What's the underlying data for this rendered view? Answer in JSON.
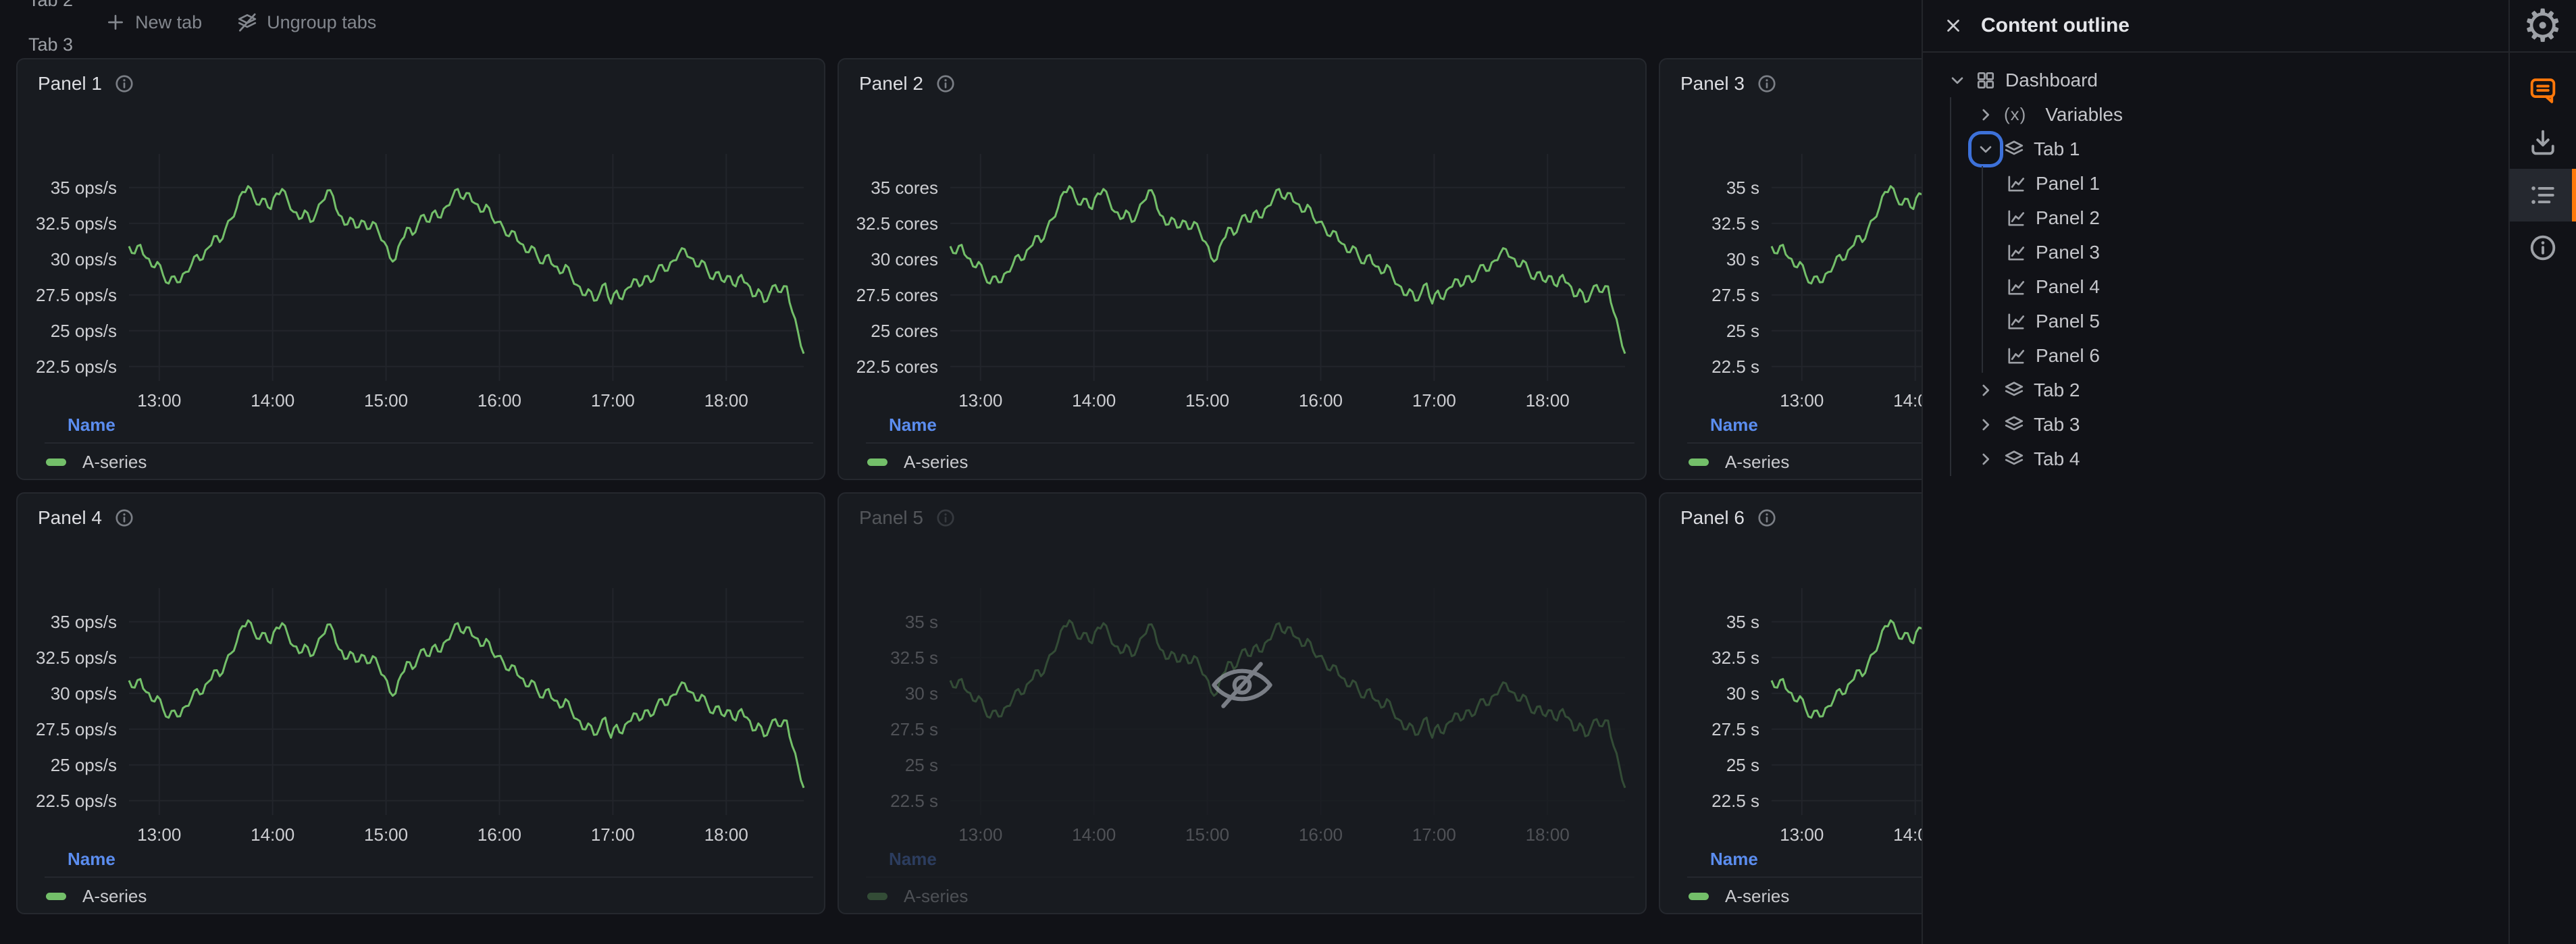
{
  "tabbar": {
    "tabs": [
      {
        "label": "Tab 1",
        "active": true
      },
      {
        "label": "Tab 2",
        "active": false
      },
      {
        "label": "Tab 3",
        "active": false
      },
      {
        "label": "Tab 4",
        "active": false
      }
    ],
    "new_tab_label": "New tab",
    "ungroup_label": "Ungroup tabs",
    "active_underline_gradient": [
      "#EC9E3E",
      "#F0503F"
    ]
  },
  "panels": [
    {
      "title": "Panel 1",
      "unit": "ops/s",
      "dimmed": false
    },
    {
      "title": "Panel 2",
      "unit": "cores",
      "dimmed": false
    },
    {
      "title": "Panel 3",
      "unit": "s",
      "dimmed": false
    },
    {
      "title": "Panel 4",
      "unit": "ops/s",
      "dimmed": false
    },
    {
      "title": "Panel 5",
      "unit": "s",
      "dimmed": true
    },
    {
      "title": "Panel 6",
      "unit": "s",
      "dimmed": false
    }
  ],
  "legend": {
    "header": "Name",
    "series_label": "A-series",
    "header_color": "#5B8DEF"
  },
  "chart_data": {
    "type": "line",
    "title": "",
    "xlabel": "",
    "ylabel": "",
    "x_ticks": [
      "13:00",
      "14:00",
      "15:00",
      "16:00",
      "17:00",
      "18:00"
    ],
    "x_tick_minutes": [
      780,
      840,
      900,
      960,
      1020,
      1080
    ],
    "x_range_minutes": [
      764,
      1121
    ],
    "y_ticks": [
      22.5,
      25,
      27.5,
      30,
      32.5,
      35
    ],
    "ylim": [
      21.5,
      36.5
    ],
    "grid": true,
    "legend_position": "bottom",
    "series": [
      {
        "name": "A-series",
        "color": "#73BF69",
        "values": [
          30.9,
          30.4,
          31.0,
          30.1,
          29.5,
          29.8,
          28.9,
          28.3,
          28.8,
          28.4,
          29.1,
          29.6,
          30.3,
          30.0,
          30.8,
          31.6,
          31.2,
          32.1,
          32.8,
          33.6,
          34.7,
          35.1,
          34.3,
          33.8,
          34.2,
          33.5,
          34.6,
          34.9,
          34.1,
          33.3,
          32.8,
          33.4,
          32.6,
          33.2,
          34.0,
          34.8,
          34.4,
          33.1,
          32.4,
          32.9,
          32.2,
          32.7,
          32.1,
          32.6,
          31.9,
          31.2,
          30.1,
          30.0,
          31.3,
          32.2,
          31.7,
          32.5,
          33.1,
          32.6,
          33.4,
          32.9,
          33.7,
          34.3,
          34.9,
          34.2,
          34.6,
          33.9,
          33.3,
          33.8,
          32.9,
          32.6,
          32.2,
          31.6,
          31.9,
          31.1,
          30.5,
          30.9,
          30.2,
          29.7,
          30.3,
          29.5,
          29.0,
          29.6,
          28.8,
          28.2,
          27.5,
          27.9,
          27.1,
          27.6,
          28.3,
          26.9,
          27.8,
          27.2,
          28.0,
          28.6,
          28.1,
          28.8,
          28.4,
          29.1,
          29.6,
          29.2,
          29.9,
          30.4,
          30.7,
          30.1,
          29.5,
          29.9,
          29.2,
          28.6,
          29.1,
          28.4,
          28.8,
          28.1,
          28.9,
          28.3,
          27.4,
          27.9,
          27.0,
          27.6,
          28.2,
          27.7,
          28.1,
          26.3,
          24.9,
          23.4
        ]
      }
    ],
    "note": "Same A-series rendered in all six panels; only the y-axis unit suffix differs per panel"
  },
  "sidebar": {
    "title": "Content outline",
    "rows": [
      {
        "label": "Dashboard",
        "icon": "dashboard",
        "chevron": "down",
        "level": 0,
        "focused": false
      },
      {
        "label": "Variables",
        "icon": "variable",
        "chevron": "right",
        "level": 1,
        "focused": false
      },
      {
        "label": "Tab 1",
        "icon": "layers",
        "chevron": "down",
        "level": 1,
        "focused": true
      },
      {
        "label": "Panel 1",
        "icon": "chart",
        "chevron": null,
        "level": 2,
        "focused": false
      },
      {
        "label": "Panel 2",
        "icon": "chart",
        "chevron": null,
        "level": 2,
        "focused": false
      },
      {
        "label": "Panel 3",
        "icon": "chart",
        "chevron": null,
        "level": 2,
        "focused": false
      },
      {
        "label": "Panel 4",
        "icon": "chart",
        "chevron": null,
        "level": 2,
        "focused": false
      },
      {
        "label": "Panel 5",
        "icon": "chart",
        "chevron": null,
        "level": 2,
        "focused": false
      },
      {
        "label": "Panel 6",
        "icon": "chart",
        "chevron": null,
        "level": 2,
        "focused": false
      },
      {
        "label": "Tab 2",
        "icon": "layers",
        "chevron": "right",
        "level": 1,
        "focused": false
      },
      {
        "label": "Tab 3",
        "icon": "layers",
        "chevron": "right",
        "level": 1,
        "focused": false
      },
      {
        "label": "Tab 4",
        "icon": "layers",
        "chevron": "right",
        "level": 1,
        "focused": false
      }
    ]
  },
  "right_rail": {
    "icons": [
      {
        "name": "settings",
        "active": false,
        "color": null,
        "section": "top"
      },
      {
        "name": "comment",
        "active": false,
        "color": "#FF780A",
        "section": "main"
      },
      {
        "name": "download",
        "active": false,
        "color": null,
        "section": "main"
      },
      {
        "name": "outline",
        "active": true,
        "color": null,
        "section": "main"
      },
      {
        "name": "info",
        "active": false,
        "color": null,
        "section": "main"
      }
    ],
    "accent_color": "#FF780A"
  },
  "colors": {
    "background": "#111217",
    "panel_background": "#181B20",
    "border": "#25282E",
    "series_green": "#73BF69",
    "link_blue": "#5B8DEF",
    "accent_orange": "#FF780A",
    "focus_ring_blue": "#3D71D9"
  }
}
